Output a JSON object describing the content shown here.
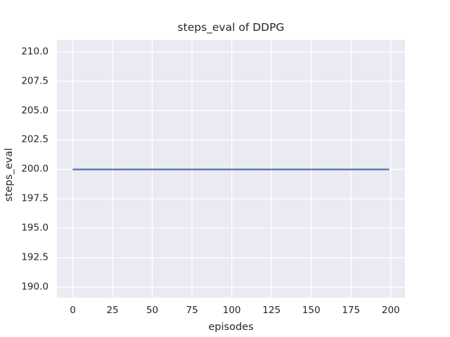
{
  "figure": {
    "colors": {
      "figure_bg": "#ffffff",
      "axes_bg": "#eaeaf2",
      "grid": "#ffffff",
      "text": "#262626",
      "line": "#4c72b0"
    }
  },
  "chart_data": {
    "type": "line",
    "title": "steps_eval of DDPG",
    "xlabel": "episodes",
    "ylabel": "steps_eval",
    "xlim": [
      -9.95,
      208.95
    ],
    "ylim": [
      189.1,
      211.0
    ],
    "xticks": [
      0,
      25,
      50,
      75,
      100,
      125,
      150,
      175,
      200
    ],
    "xtick_labels": [
      "0",
      "25",
      "50",
      "75",
      "100",
      "125",
      "150",
      "175",
      "200"
    ],
    "yticks": [
      190.0,
      192.5,
      195.0,
      197.5,
      200.0,
      202.5,
      205.0,
      207.5,
      210.0
    ],
    "ytick_labels": [
      "190.0",
      "192.5",
      "195.0",
      "197.5",
      "200.0",
      "202.5",
      "205.0",
      "207.5",
      "210.0"
    ],
    "grid": true,
    "legend": null,
    "series": [
      {
        "name": "DDPG",
        "color": "#4c72b0",
        "linewidth": 2.2,
        "points": [
          [
            0,
            200
          ],
          [
            199,
            200
          ]
        ],
        "description": "constant steps_eval value of 200 for every episode from 0 to 199"
      }
    ]
  }
}
